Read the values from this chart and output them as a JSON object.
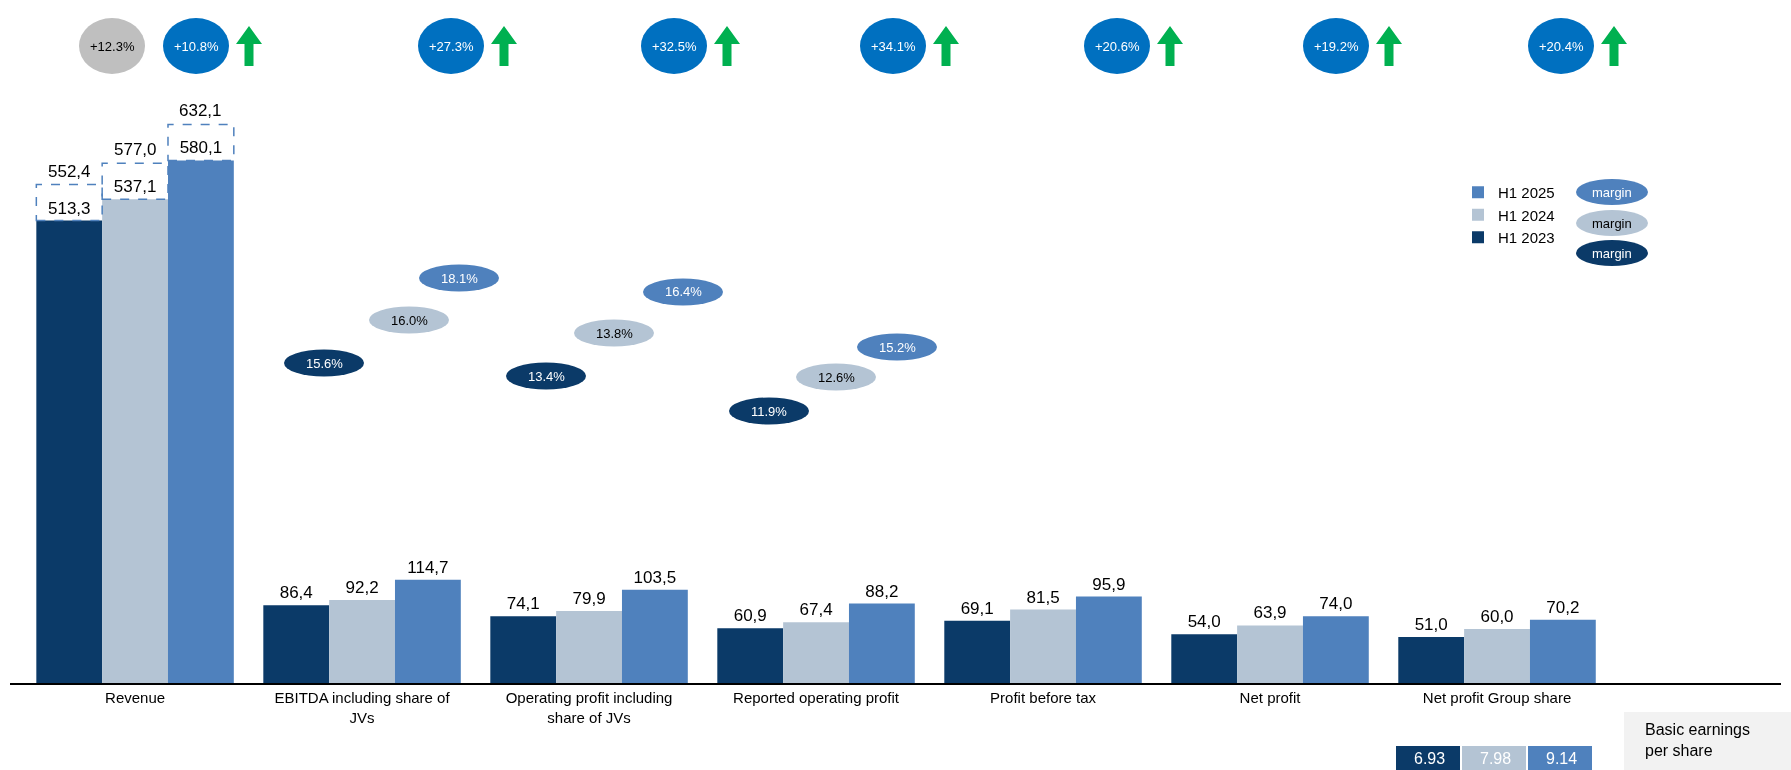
{
  "chart_data": {
    "type": "bar",
    "categories": [
      "Revenue",
      "EBITDA including share of JVs",
      "Operating profit including share of JVs",
      "Reported operating profit",
      "Profit before tax",
      "Net profit",
      "Net profit Group share"
    ],
    "series": [
      {
        "name": "H1 2023",
        "color": "#0b3a68",
        "values": [
          513.3,
          86.4,
          74.1,
          60.9,
          69.1,
          54.0,
          51.0
        ],
        "value_labels": [
          "513,3",
          "86,4",
          "74,1",
          "60,9",
          "69,1",
          "54,0",
          "51,0"
        ]
      },
      {
        "name": "H1 2024",
        "color": "#b4c4d4",
        "values": [
          537.1,
          92.2,
          79.9,
          67.4,
          81.5,
          63.9,
          60.0
        ],
        "value_labels": [
          "537,1",
          "92,2",
          "79,9",
          "67,4",
          "81,5",
          "63,9",
          "60,0"
        ]
      },
      {
        "name": "H1 2025",
        "color": "#4f81bd",
        "values": [
          580.1,
          114.7,
          103.5,
          88.2,
          95.9,
          74.0,
          70.2
        ],
        "value_labels": [
          "580,1",
          "114,7",
          "103,5",
          "88,2",
          "95,9",
          "74,0",
          "70,2"
        ]
      }
    ],
    "legend": "top right",
    "annotations": [
      "+12.3%",
      "+10.8%",
      "+27.3%",
      "+32.5%",
      "+34.1%",
      "+20.6%",
      "+19.2%",
      "+20.4%",
      "15.6%",
      "16.0%",
      "18.1%",
      "13.4%",
      "13.8%",
      "16.4%",
      "11.9%",
      "12.6%",
      "15.2%",
      "margin",
      "margin",
      "margin",
      "Basic earnings per share",
      "6.93",
      "7.98",
      "9.14",
      "552,4",
      "577,0",
      "632,1"
    ]
  }
}
